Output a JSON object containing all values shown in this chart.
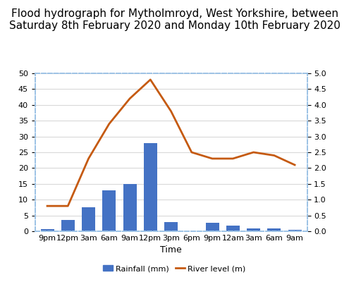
{
  "title": "Flood hydrograph for Mytholmroyd, West Yorkshire, between\nSaturday 8th February 2020 and Monday 10th February 2020",
  "x_labels": [
    "9pm",
    "12pm",
    "3am",
    "6am",
    "9am",
    "12pm",
    "3pm",
    "6pm",
    "9pm",
    "12am",
    "3am",
    "6am",
    "9am"
  ],
  "rainfall_mm": [
    0.7,
    3.5,
    7.5,
    13.0,
    15.0,
    28.0,
    3.0,
    0,
    2.7,
    1.7,
    0.8,
    1.0,
    0.5
  ],
  "river_level_m": [
    0.8,
    0.8,
    2.3,
    3.4,
    4.2,
    4.8,
    3.8,
    2.5,
    2.3,
    2.3,
    2.5,
    2.4,
    2.1
  ],
  "bar_color": "#4472C4",
  "line_color": "#C55A11",
  "left_ylim": [
    0,
    50
  ],
  "right_ylim": [
    0,
    5
  ],
  "left_yticks": [
    0,
    5,
    10,
    15,
    20,
    25,
    30,
    35,
    40,
    45,
    50
  ],
  "right_yticks": [
    0,
    0.5,
    1.0,
    1.5,
    2.0,
    2.5,
    3.0,
    3.5,
    4.0,
    4.5,
    5.0
  ],
  "xlabel": "Time",
  "grid_color": "#D9D9D9",
  "border_color": "#9DC3E6",
  "title_fontsize": 11,
  "axis_fontsize": 8,
  "legend_fontsize": 8
}
